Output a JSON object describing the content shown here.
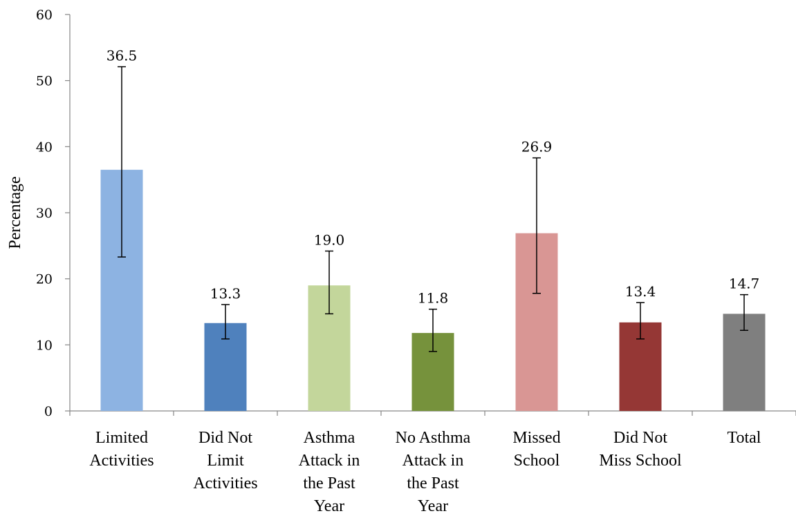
{
  "chart_data": {
    "type": "bar",
    "title": "",
    "xlabel": "",
    "ylabel": "Percentage",
    "ylim": [
      0,
      60
    ],
    "yticks": [
      0,
      10,
      20,
      30,
      40,
      50,
      60
    ],
    "grid": false,
    "legend": "none",
    "categories": [
      [
        "Limited",
        "Activities"
      ],
      [
        "Did Not",
        "Limit",
        "Activities"
      ],
      [
        "Asthma",
        "Attack in",
        "the Past",
        "Year"
      ],
      [
        "No Asthma",
        "Attack in",
        "the Past",
        "Year"
      ],
      [
        "Missed",
        "School"
      ],
      [
        "Did Not",
        "Miss School"
      ],
      [
        "Total"
      ]
    ],
    "values": [
      36.5,
      13.3,
      19.0,
      11.8,
      26.9,
      13.4,
      14.7
    ],
    "value_labels": [
      "36.5",
      "13.3",
      "19.0",
      "11.8",
      "26.9",
      "13.4",
      "14.7"
    ],
    "error_low": [
      23.3,
      10.9,
      14.7,
      9.0,
      17.8,
      10.9,
      12.2
    ],
    "error_high": [
      52.1,
      16.1,
      24.2,
      15.4,
      38.3,
      16.4,
      17.6
    ],
    "colors": [
      "#8DB3E2",
      "#4F81BD",
      "#C3D69B",
      "#76923C",
      "#D99694",
      "#953735",
      "#7F7F7F"
    ]
  }
}
